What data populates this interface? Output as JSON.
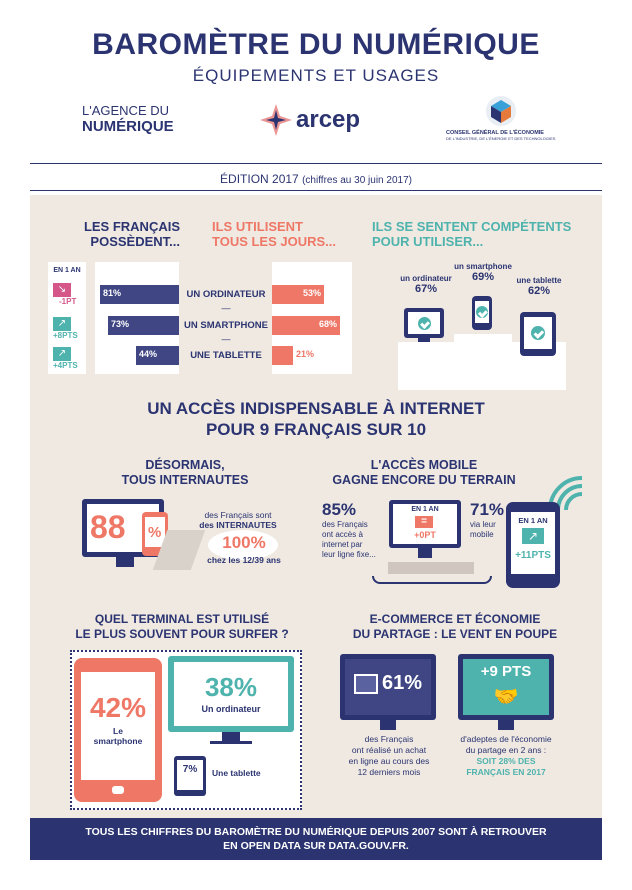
{
  "header": {
    "title": "BAROMÈTRE DU NUMÉRIQUE",
    "subtitle": "ÉQUIPEMENTS ET USAGES",
    "logo_agence_line1": "L'AGENCE DU",
    "logo_agence_line2": "NUMÉRIQUE",
    "logo_arcep": "arcep",
    "logo_cge_line1": "CONSEIL GÉNÉRAL DE L'ÉCONOMIE",
    "logo_cge_line2": "DE L'INDUSTRIE, DE L'ÉNERGIE ET DES TECHNOLOGIES",
    "edition": "ÉDITION 2017",
    "edition_note": "(chiffres au 30 juin 2017)"
  },
  "section1": {
    "col_possess": [
      "LES FRANÇAIS",
      "POSSÈDENT..."
    ],
    "col_daily": [
      "ILS UTILISENT",
      "TOUS LES JOURS..."
    ],
    "col_competent": [
      "ILS SE SENTENT COMPÉTENTS",
      "POUR UTILISER..."
    ],
    "en_un_an": "EN 1 AN",
    "dash": "—",
    "rows": [
      {
        "label": "UN ORDINATEUR",
        "possess": "81%",
        "daily": "53%",
        "trend": "-1PT"
      },
      {
        "label": "UN SMARTPHONE",
        "possess": "73%",
        "daily": "68%",
        "trend": "+8PTS"
      },
      {
        "label": "UNE TABLETTE",
        "possess": "44%",
        "daily": "21%",
        "trend": "+4PTS"
      }
    ],
    "podium": [
      {
        "label": "un ordinateur",
        "value": "67%"
      },
      {
        "label": "un smartphone",
        "value": "69%"
      },
      {
        "label": "une tablette",
        "value": "62%"
      }
    ]
  },
  "section2": {
    "headline_1": "UN ACCÈS INDISPENSABLE À INTERNET",
    "headline_2": "POUR 9 FRANÇAIS SUR 10",
    "left_title_1": "DÉSORMAIS,",
    "left_title_2": "TOUS INTERNAUTES",
    "big_88": "88",
    "pct": "%",
    "internautes_1": "des Français sont",
    "internautes_2": "des INTERNAUTES",
    "big_100": "100%",
    "ages": "chez les 12/39 ans",
    "right_title_1": "L'ACCÈS MOBILE",
    "right_title_2": "GAGNE ENCORE DU TERRAIN",
    "fixed_pct": "85%",
    "fixed_desc": [
      "des Français",
      "ont accès à",
      "internet par",
      "leur ligne fixe..."
    ],
    "fixed_en_un_an": "EN 1 AN",
    "fixed_trend": "+0PT",
    "mobile_pct": "71%",
    "mobile_desc": [
      "via leur",
      "mobile"
    ],
    "mobile_en_un_an": "EN 1 AN",
    "mobile_trend": "+11PTS"
  },
  "section3": {
    "terminal_title_1": "QUEL TERMINAL EST UTILISÉ",
    "terminal_title_2": "LE PLUS SOUVENT POUR SURFER ?",
    "smartphone_pct": "42%",
    "smartphone_label_1": "Le",
    "smartphone_label_2": "smartphone",
    "ordi_pct": "38%",
    "ordi_label": "Un ordinateur",
    "tablet_pct": "7%",
    "tablet_label": "Une tablette",
    "ecom_title_1": "E-COMMERCE ET ÉCONOMIE",
    "ecom_title_2": "DU PARTAGE : LE VENT EN POUPE",
    "ecom_pct": "61%",
    "ecom_desc": [
      "des Français",
      "ont réalisé un achat",
      "en ligne au cours des",
      "12 derniers mois"
    ],
    "share_pct": "+9 PTS",
    "share_desc": [
      "d'adeptes de l'économie",
      "du partage en 2 ans :"
    ],
    "share_highlight": [
      "SOIT 28% DES",
      "FRANÇAIS EN 2017"
    ]
  },
  "footer": {
    "line1": "TOUS LES CHIFFRES DU BAROMÈTRE DU NUMÉRIQUE DEPUIS 2007 SONT À RETROUVER",
    "line2": "EN OPEN DATA SUR DATA.GOUV.FR."
  },
  "colors": {
    "navy": "#2b3471",
    "salmon": "#ef7766",
    "teal": "#4fb3ad",
    "panel": "#efe9e2"
  }
}
